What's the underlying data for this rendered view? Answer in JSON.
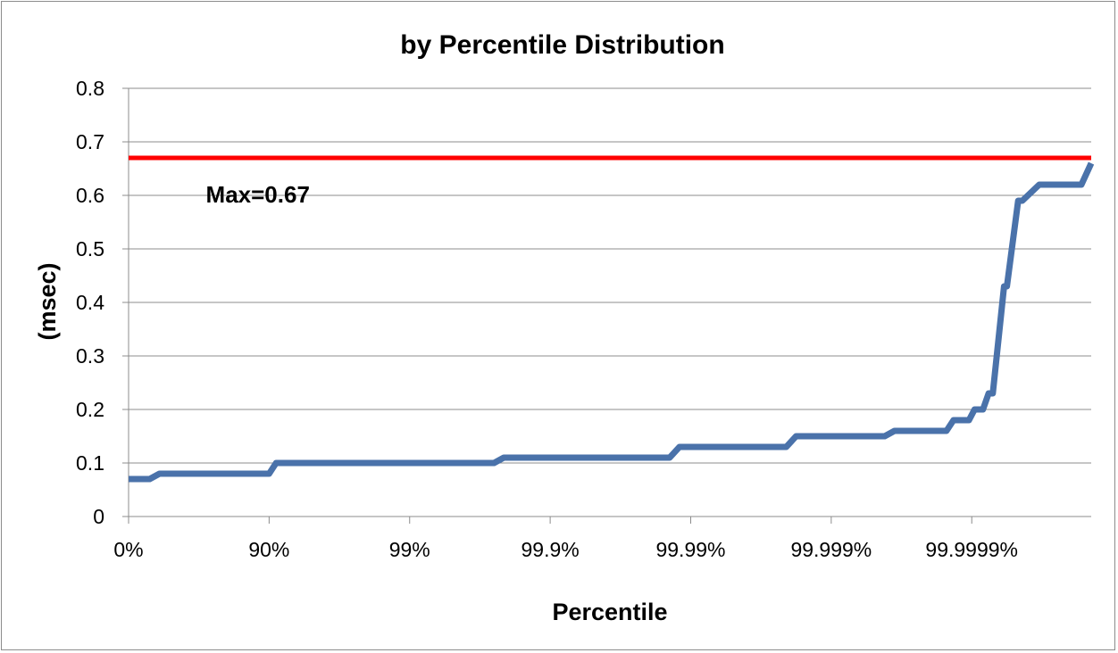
{
  "chart_data": {
    "type": "line",
    "title": "by Percentile Distribution",
    "xlabel": "Percentile",
    "ylabel": "(msec)",
    "x_scale": "inverse-log (percentile: 100 - 100/10^n)",
    "x_ticks": [
      {
        "label": "0%",
        "n": 0
      },
      {
        "label": "90%",
        "n": 1
      },
      {
        "label": "99%",
        "n": 2
      },
      {
        "label": "99.9%",
        "n": 3
      },
      {
        "label": "99.99%",
        "n": 4
      },
      {
        "label": "99.999%",
        "n": 5
      },
      {
        "label": "99.9999%",
        "n": 6
      }
    ],
    "xlim_n": [
      0,
      6.85
    ],
    "ylim": [
      0,
      0.8
    ],
    "y_ticks": [
      "0",
      "0.1",
      "0.2",
      "0.3",
      "0.4",
      "0.5",
      "0.6",
      "0.7",
      "0.8"
    ],
    "y_tick_values": [
      0,
      0.1,
      0.2,
      0.3,
      0.4,
      0.5,
      0.6,
      0.7,
      0.8
    ],
    "grid": true,
    "series": [
      {
        "color": "#4a72aa",
        "x_n": [
          0.0,
          0.15,
          0.22,
          1.0,
          1.05,
          2.0,
          2.05,
          2.6,
          2.67,
          3.85,
          3.92,
          4.68,
          4.75,
          5.38,
          5.45,
          5.82,
          5.87,
          5.98,
          6.02,
          6.08,
          6.12,
          6.15,
          6.23,
          6.25,
          6.33,
          6.36,
          6.48,
          6.52,
          6.78,
          6.85
        ],
        "y": [
          0.07,
          0.07,
          0.08,
          0.08,
          0.1,
          0.1,
          0.1,
          0.1,
          0.11,
          0.11,
          0.13,
          0.13,
          0.15,
          0.15,
          0.16,
          0.16,
          0.18,
          0.18,
          0.2,
          0.2,
          0.23,
          0.23,
          0.43,
          0.43,
          0.59,
          0.59,
          0.62,
          0.62,
          0.62,
          0.66
        ]
      },
      {
        "color": "#ff0000",
        "x_n": [
          0,
          6.85
        ],
        "y": [
          0.67,
          0.67
        ]
      }
    ],
    "annotations": [
      {
        "text": "Max=0.67",
        "x_n": 0.55,
        "y": 0.6
      }
    ]
  }
}
